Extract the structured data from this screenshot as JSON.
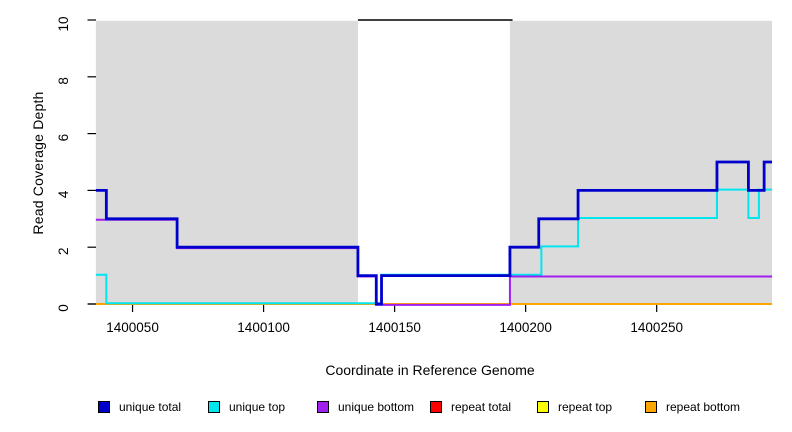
{
  "figure": {
    "y_axis_title": "Read Coverage Depth",
    "x_axis_title": "Coordinate in Reference Genome"
  },
  "chart_data": {
    "type": "line",
    "subtype": "step-coverage",
    "title": "",
    "xlabel": "Coordinate in Reference Genome",
    "ylabel": "Read Coverage Depth",
    "xlim": [
      1400033,
      1400294
    ],
    "ylim": [
      0,
      10
    ],
    "x_ticks": [
      1400050,
      1400100,
      1400150,
      1400200,
      1400250
    ],
    "x_tick_labels": [
      "1400050",
      "1400100",
      "1400150",
      "1400200",
      "1400250"
    ],
    "y_ticks": [
      0,
      2,
      4,
      6,
      8,
      10
    ],
    "y_tick_labels": [
      "0",
      "2",
      "4",
      "6",
      "8",
      "10"
    ],
    "grid": false,
    "shaded_regions": {
      "color": "#DBDBDB",
      "regions": [
        {
          "x1": 1400036,
          "x2": 1400136
        },
        {
          "x1": 1400194,
          "x2": 1400294
        }
      ]
    },
    "clipped_line": {
      "x1": 1400136,
      "x2": 1400195,
      "y": 10,
      "color": "#000000"
    },
    "series": [
      {
        "name": "repeat bottom",
        "color": "#FFA500",
        "width": 2,
        "yoffset": 0,
        "points": [
          [
            1400036,
            0
          ],
          [
            1400294,
            0
          ]
        ]
      },
      {
        "name": "unique top",
        "color": "#00E5EE",
        "width": 2,
        "yoffset": -0.8,
        "points": [
          [
            1400036,
            1
          ],
          [
            1400040,
            0
          ],
          [
            1400145,
            1
          ],
          [
            1400206,
            2
          ],
          [
            1400220,
            3
          ],
          [
            1400273,
            4
          ],
          [
            1400285,
            3
          ],
          [
            1400289,
            4
          ],
          [
            1400294,
            4
          ]
        ]
      },
      {
        "name": "unique bottom",
        "color": "#A020F0",
        "width": 2,
        "yoffset": 0.9,
        "points": [
          [
            1400036,
            3
          ],
          [
            1400067,
            2
          ],
          [
            1400136,
            1
          ],
          [
            1400143,
            0
          ],
          [
            1400194,
            1
          ],
          [
            1400294,
            1
          ]
        ]
      },
      {
        "name": "unique total",
        "color": "#0000CD",
        "width": 2.8,
        "yoffset": 0,
        "points": [
          [
            1400036,
            4
          ],
          [
            1400040,
            3
          ],
          [
            1400067,
            2
          ],
          [
            1400136,
            1
          ],
          [
            1400143,
            0
          ],
          [
            1400145,
            1
          ],
          [
            1400194,
            2
          ],
          [
            1400205,
            3
          ],
          [
            1400220,
            4
          ],
          [
            1400273,
            5
          ],
          [
            1400285,
            4
          ],
          [
            1400291,
            5
          ],
          [
            1400294,
            5
          ]
        ]
      }
    ],
    "legend_position": "bottom"
  },
  "legend": {
    "items": [
      {
        "label": "unique total",
        "color": "#0000CD"
      },
      {
        "label": "unique top",
        "color": "#00E5EE"
      },
      {
        "label": "unique bottom",
        "color": "#A020F0"
      },
      {
        "label": "repeat total",
        "color": "#FF0000"
      },
      {
        "label": "repeat top",
        "color": "#FFFF00"
      },
      {
        "label": "repeat bottom",
        "color": "#FFA500"
      }
    ]
  }
}
